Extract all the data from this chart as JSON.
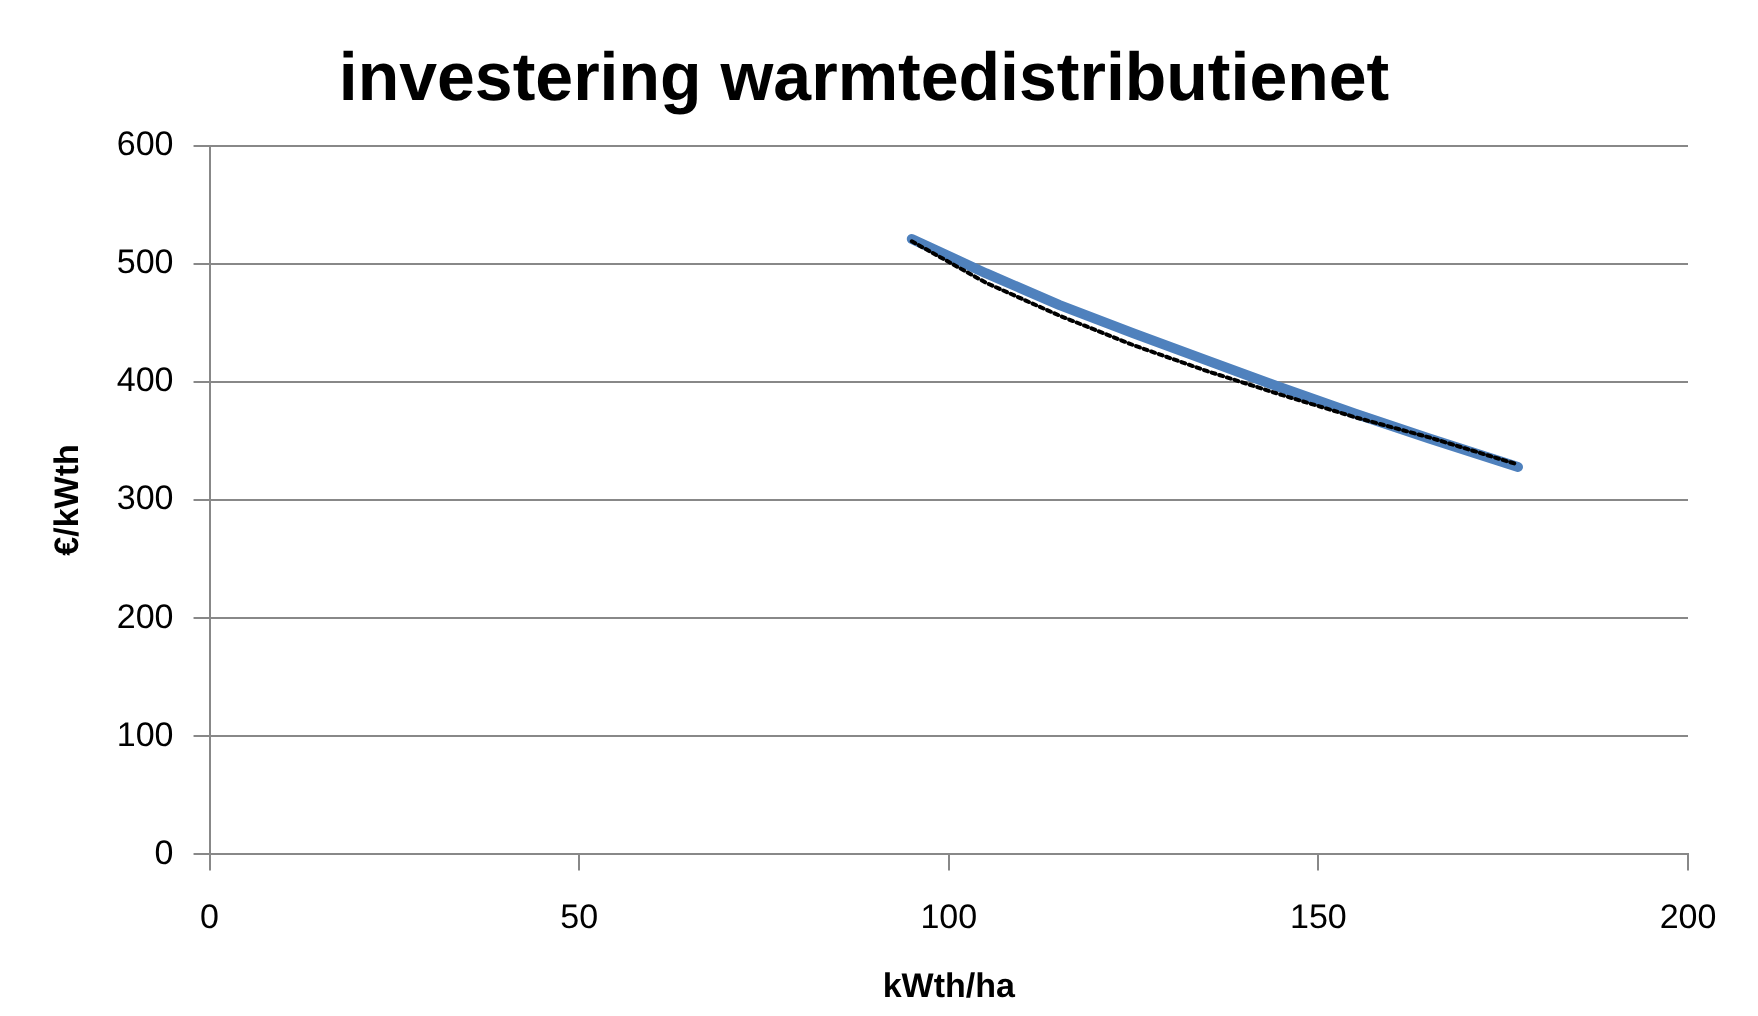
{
  "chart_data": {
    "type": "line",
    "title": "investering warmtedistributienet",
    "xlabel": "kWth/ha",
    "ylabel": "€/kWth",
    "series": [
      {
        "color": "#4f81bd",
        "x": [
          95,
          105,
          115,
          125,
          135,
          145,
          155,
          165,
          177
        ],
        "values": [
          521,
          492,
          465,
          441,
          418,
          395,
          373,
          352,
          328
        ],
        "line_style": "solid"
      },
      {
        "color": "#000000",
        "x": [
          95,
          105,
          115,
          125,
          135,
          145,
          155,
          165,
          177
        ],
        "values": [
          519,
          484,
          456,
          431,
          409,
          389,
          370,
          353,
          330
        ],
        "line_style": "dotted"
      }
    ],
    "xlim": [
      0,
      200
    ],
    "xticks": [
      0,
      50,
      100,
      150,
      200
    ],
    "ylim": [
      0,
      600
    ],
    "yticks": [
      0,
      100,
      200,
      300,
      400,
      500,
      600
    ],
    "grid": "y",
    "legend": false,
    "marker": "none"
  }
}
